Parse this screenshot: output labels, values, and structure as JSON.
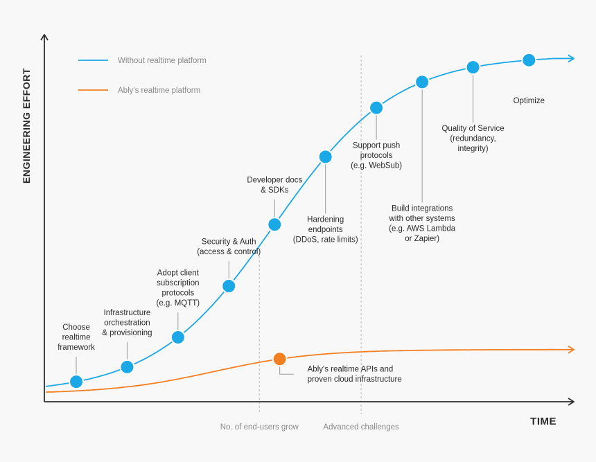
{
  "chart_data": {
    "type": "line",
    "title": "",
    "xlabel": "TIME",
    "ylabel": "ENGINEERING EFFORT",
    "xlim": [
      0,
      100
    ],
    "ylim": [
      0,
      100
    ],
    "grid": false,
    "legend_position": "top-left",
    "colors": {
      "blue": "#1ba8e6",
      "orange": "#f37f21",
      "axis": "#2c2c2c",
      "leader": "#999999",
      "guide": "#b8b8b8"
    },
    "series": [
      {
        "name": "Without realtime platform",
        "color": "#1ba8e6",
        "curve": {
          "kind": "logistic",
          "min": 2,
          "max": 94,
          "midpoint": 45,
          "scale": 11.8
        },
        "points": [
          {
            "x": 6,
            "label": "Choose realtime framework",
            "lines": [
              "Choose",
              "realtime",
              "framework"
            ],
            "side": "above"
          },
          {
            "x": 16,
            "label": "Infrastructure orchestration & provisioning",
            "lines": [
              "Infrastructure",
              "orchestration",
              "& provisioning"
            ],
            "side": "above"
          },
          {
            "x": 26,
            "label": "Adopt client subscription protocols (e.g. MQTT)",
            "lines": [
              "Adopt client",
              "subscription",
              "protocols",
              "(e.g. MQTT)"
            ],
            "side": "above"
          },
          {
            "x": 36,
            "label": "Security & Auth (access & control)",
            "lines": [
              "Security & Auth",
              "(access & control)"
            ],
            "side": "above"
          },
          {
            "x": 45,
            "label": "Developer docs & SDKs",
            "lines": [
              "Developer docs",
              "& SDKs"
            ],
            "side": "above"
          },
          {
            "x": 55,
            "label": "Hardening endpoints (DDoS, rate limits)",
            "lines": [
              "Hardening",
              "endpoints",
              "(DDoS, rate limits)"
            ],
            "side": "below"
          },
          {
            "x": 65,
            "label": "Support push protocols (e.g. WebSub)",
            "lines": [
              "Support push",
              "protocols",
              "(e.g. WebSub)"
            ],
            "side": "below"
          },
          {
            "x": 74,
            "label": "Build integrations with other systems (e.g. AWS Lambda or Zapier)",
            "lines": [
              "Build integrations",
              "with other systems",
              "(e.g. AWS Lambda",
              "or Zapier)"
            ],
            "side": "below"
          },
          {
            "x": 84,
            "label": "Quality of Service (redundancy, integrity)",
            "lines": [
              "Quality of Service",
              "(redundancy,",
              "integrity)"
            ],
            "side": "below"
          },
          {
            "x": 95,
            "label": "Optimize",
            "lines": [
              "Optimize"
            ],
            "side": "below"
          }
        ]
      },
      {
        "name": "Ably's realtime platform",
        "color": "#f37f21",
        "curve": {
          "kind": "logistic",
          "min": 2,
          "max": 14,
          "midpoint": 33,
          "scale": 10
        },
        "points": [
          {
            "x": 46,
            "label": "Ably's realtime APIs and proven cloud infrastructure",
            "lines": [
              "Ably's realtime APIs and",
              "proven cloud infrastructure"
            ],
            "side": "right"
          }
        ]
      }
    ],
    "markers": [
      {
        "x": 42,
        "label": "No. of end-users grow"
      },
      {
        "x": 62,
        "label": "Advanced challenges"
      }
    ]
  }
}
